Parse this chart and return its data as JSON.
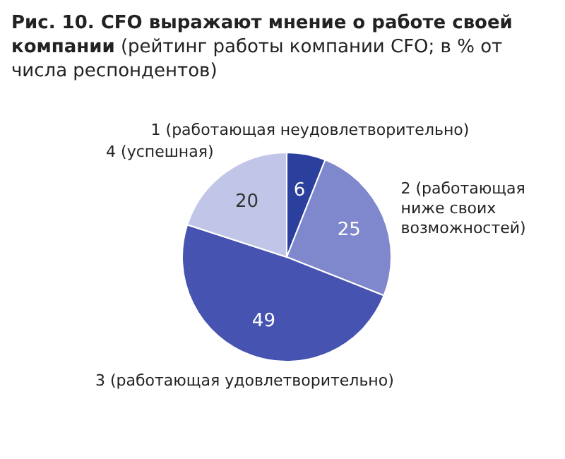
{
  "chart_data": {
    "type": "pie",
    "title": "Рис. 10. CFO выражают мнение о работе своей компании",
    "subtitle": "(рейтинг работы компании CFO; в % от числа респондентов)",
    "categories": [
      "1 (работающая неудовлетворительно)",
      "2 (работающая ниже своих возможностей)",
      "3 (работающая удовлетворительно)",
      "4 (успешная)"
    ],
    "values": [
      6,
      25,
      49,
      20
    ],
    "colors": [
      "#2b3f9c",
      "#7f88cc",
      "#4653b0",
      "#c1c5e8"
    ],
    "data_labels": true
  }
}
